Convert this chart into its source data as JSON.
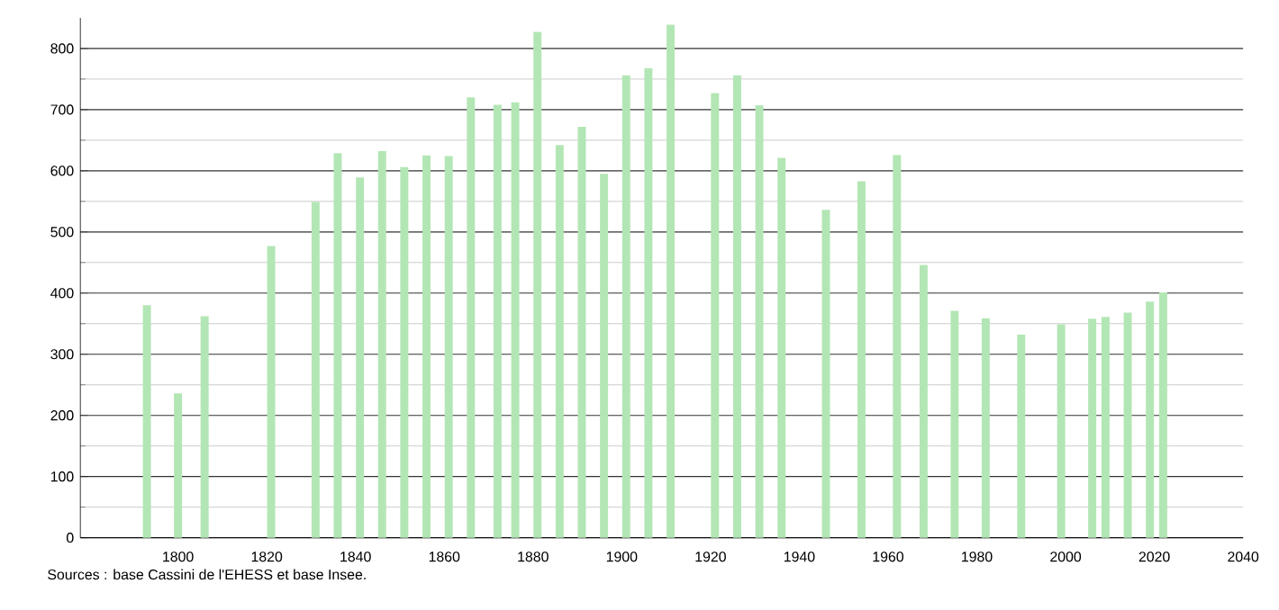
{
  "chart_data": {
    "type": "bar",
    "x": [
      1793,
      1800,
      1806,
      1821,
      1831,
      1836,
      1841,
      1846,
      1851,
      1856,
      1861,
      1866,
      1872,
      1876,
      1881,
      1886,
      1891,
      1896,
      1901,
      1906,
      1911,
      1921,
      1926,
      1931,
      1936,
      1946,
      1954,
      1962,
      1968,
      1975,
      1982,
      1990,
      1999,
      2006,
      2009,
      2014,
      2019,
      2022
    ],
    "values": [
      380,
      236,
      362,
      477,
      549,
      629,
      589,
      632,
      606,
      625,
      624,
      720,
      708,
      712,
      827,
      642,
      672,
      595,
      756,
      768,
      839,
      727,
      756,
      707,
      621,
      536,
      583,
      626,
      446,
      371,
      359,
      332,
      349,
      358,
      361,
      368,
      386,
      401
    ],
    "color": "#b3e6b5",
    "xlim": [
      1778,
      2040
    ],
    "xticks": [
      1800,
      1820,
      1840,
      1860,
      1880,
      1900,
      1920,
      1940,
      1960,
      1980,
      2000,
      2020,
      2040
    ],
    "ylim": [
      0,
      850
    ],
    "yticks": [
      0,
      100,
      200,
      300,
      400,
      500,
      600,
      700,
      800
    ],
    "grid": "y",
    "annotations": [
      "Sources : base Cassini de l'EHESS et base Insee."
    ]
  }
}
